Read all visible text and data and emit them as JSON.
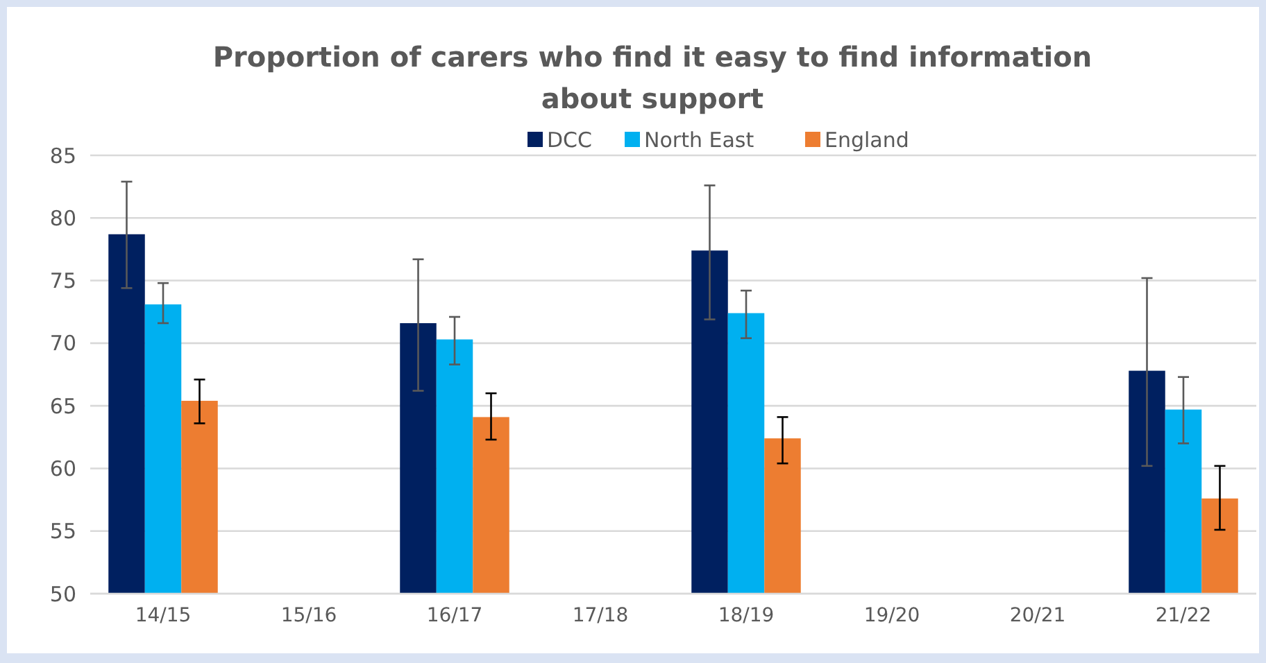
{
  "chart_data": {
    "type": "bar",
    "title": "Proportion of carers who find it easy to find information about support",
    "categories": [
      "14/15",
      "15/16",
      "16/17",
      "17/18",
      "18/19",
      "19/20",
      "20/21",
      "21/22"
    ],
    "series": [
      {
        "name": "DCC",
        "color": "#002060",
        "values": [
          78.7,
          null,
          71.6,
          null,
          77.4,
          null,
          null,
          67.8
        ],
        "errors": [
          [
            74.4,
            82.9
          ],
          null,
          [
            66.2,
            76.7
          ],
          null,
          [
            71.9,
            82.6
          ],
          null,
          null,
          [
            60.2,
            75.2
          ]
        ]
      },
      {
        "name": "North East",
        "color": "#00b0f0",
        "values": [
          73.1,
          null,
          70.3,
          null,
          72.4,
          null,
          null,
          64.7
        ],
        "errors": [
          [
            71.6,
            74.8
          ],
          null,
          [
            68.3,
            72.1
          ],
          null,
          [
            70.4,
            74.2
          ],
          null,
          null,
          [
            62.0,
            67.3
          ]
        ]
      },
      {
        "name": "England",
        "color": "#ed7d31",
        "values": [
          65.4,
          null,
          64.1,
          null,
          62.4,
          null,
          null,
          57.6
        ],
        "errors": [
          [
            63.6,
            67.1
          ],
          null,
          [
            62.3,
            66.0
          ],
          null,
          [
            60.4,
            64.1
          ],
          null,
          null,
          [
            55.1,
            60.2
          ]
        ]
      }
    ],
    "ylim": [
      50,
      85
    ],
    "yticks": [
      50,
      55,
      60,
      65,
      70,
      75,
      80,
      85
    ],
    "grid": "y",
    "legend": "top"
  }
}
